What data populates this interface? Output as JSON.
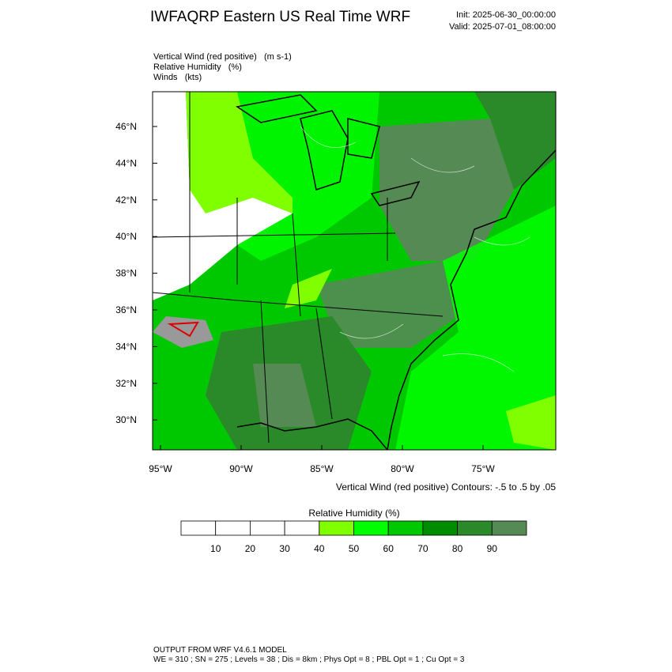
{
  "title": "IWFAQRP Eastern US Real Time WRF",
  "init": "Init: 2025-06-30_00:00:00",
  "valid": "Valid: 2025-07-01_08:00:00",
  "fields": [
    "Vertical Wind (red positive)   (m s-1)",
    "Relative Humidity   (%)",
    "Winds   (kts)"
  ],
  "lat_labels": [
    "46°N",
    "44°N",
    "42°N",
    "40°N",
    "38°N",
    "36°N",
    "34°N",
    "32°N",
    "30°N"
  ],
  "lon_labels": [
    "95°W",
    "90°W",
    "85°W",
    "80°W",
    "75°W"
  ],
  "contour_note": "Vertical Wind (red positive) Contours: -.5 to .5 by .05",
  "colorbar": {
    "title": "Relative Humidity  (%)",
    "labels": [
      10,
      20,
      30,
      40,
      50,
      60,
      70,
      80,
      90
    ],
    "colors": [
      "#ffffff",
      "#ffffff",
      "#ffffff",
      "#ffffff",
      "#80ff00",
      "#00ff00",
      "#00c800",
      "#008c00",
      "#2a8a2a",
      "#558a55"
    ]
  },
  "footer": [
    "OUTPUT FROM WRF V4.6.1 MODEL",
    "WE = 310 ; SN = 275 ; Levels = 38 ; Dis = 8km ; Phys Opt = 8 ; PBL Opt = 1 ; Cu Opt = 3"
  ]
}
